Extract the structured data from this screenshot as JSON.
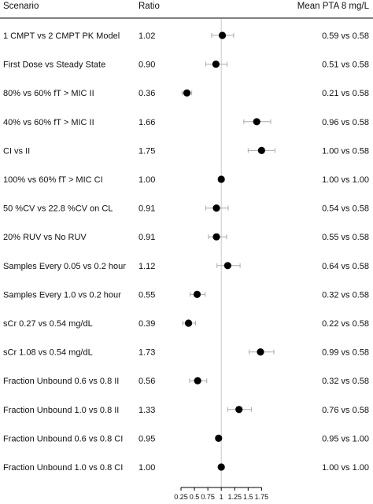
{
  "header": {
    "scenario": "Scenario",
    "ratio": "Ratio",
    "pta": "Mean PTA 8 mg/L"
  },
  "chart_data": {
    "type": "scatter",
    "subtype": "forest-plot",
    "reference_line": 1,
    "xlim": [
      0.25,
      1.85
    ],
    "x_ticks": [
      0.25,
      0.5,
      0.75,
      1,
      1.25,
      1.5,
      1.75
    ],
    "x_tick_labels": [
      "0.25",
      "0.5",
      "0.75",
      "1",
      "1.25",
      "1.5",
      "1.75"
    ],
    "grid": false,
    "rows": [
      {
        "scenario": "1 CMPT vs 2 CMPT PK Model",
        "ratio": 1.02,
        "ratio_label": "1.02",
        "lower": 0.82,
        "upper": 1.23,
        "pta": "0.59 vs 0.58"
      },
      {
        "scenario": "First Dose vs Steady State",
        "ratio": 0.9,
        "ratio_label": "0.90",
        "lower": 0.71,
        "upper": 1.11,
        "pta": "0.51 vs 0.58"
      },
      {
        "scenario": "80% vs 60% fT > MIC II",
        "ratio": 0.36,
        "ratio_label": "0.36",
        "lower": 0.27,
        "upper": 0.45,
        "pta": "0.21 vs 0.58"
      },
      {
        "scenario": "40% vs 60% fT > MIC II",
        "ratio": 1.66,
        "ratio_label": "1.66",
        "lower": 1.42,
        "upper": 1.92,
        "pta": "0.96 vs 0.58"
      },
      {
        "scenario": "CI vs II",
        "ratio": 1.75,
        "ratio_label": "1.75",
        "lower": 1.5,
        "upper": 2.0,
        "pta": "1.00 vs 0.58"
      },
      {
        "scenario": "100% vs 60% fT > MIC CI",
        "ratio": 1.0,
        "ratio_label": "1.00",
        "lower": 1.0,
        "upper": 1.0,
        "pta": "1.00 vs 1.00"
      },
      {
        "scenario": "50 %CV vs 22.8 %CV on CL",
        "ratio": 0.91,
        "ratio_label": "0.91",
        "lower": 0.71,
        "upper": 1.13,
        "pta": "0.54 vs 0.58"
      },
      {
        "scenario": "20% RUV vs No RUV",
        "ratio": 0.91,
        "ratio_label": "0.91",
        "lower": 0.76,
        "upper": 1.1,
        "pta": "0.55 vs 0.58"
      },
      {
        "scenario": "Samples Every 0.05 vs 0.2 hour",
        "ratio": 1.12,
        "ratio_label": "1.12",
        "lower": 0.92,
        "upper": 1.35,
        "pta": "0.64 vs 0.58"
      },
      {
        "scenario": "Samples Every 1.0 vs 0.2 hour",
        "ratio": 0.55,
        "ratio_label": "0.55",
        "lower": 0.42,
        "upper": 0.7,
        "pta": "0.32 vs 0.58"
      },
      {
        "scenario": "sCr 0.27 vs 0.54 mg/dL",
        "ratio": 0.39,
        "ratio_label": "0.39",
        "lower": 0.28,
        "upper": 0.52,
        "pta": "0.22 vs 0.58"
      },
      {
        "scenario": "sCr 1.08 vs 0.54 mg/dL",
        "ratio": 1.73,
        "ratio_label": "1.73",
        "lower": 1.52,
        "upper": 1.98,
        "pta": "0.99 vs 0.58"
      },
      {
        "scenario": "Fraction Unbound 0.6 vs 0.8 II",
        "ratio": 0.56,
        "ratio_label": "0.56",
        "lower": 0.41,
        "upper": 0.73,
        "pta": "0.32 vs 0.58"
      },
      {
        "scenario": "Fraction Unbound 1.0 vs 0.8 II",
        "ratio": 1.33,
        "ratio_label": "1.33",
        "lower": 1.12,
        "upper": 1.56,
        "pta": "0.76 vs 0.58"
      },
      {
        "scenario": "Fraction Unbound 0.6 vs 0.8 CI",
        "ratio": 0.95,
        "ratio_label": "0.95",
        "lower": 0.95,
        "upper": 0.95,
        "pta": "0.95 vs 1.00"
      },
      {
        "scenario": "Fraction Unbound 1.0 vs 0.8 CI",
        "ratio": 1.0,
        "ratio_label": "1.00",
        "lower": 1.0,
        "upper": 1.0,
        "pta": "1.00 vs 1.00"
      }
    ]
  }
}
